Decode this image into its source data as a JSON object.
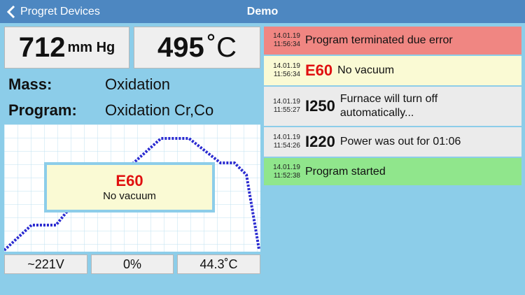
{
  "nav": {
    "back": "Progret Devices",
    "title": "Demo"
  },
  "readings": {
    "pressure": {
      "value": "712",
      "unit": "mm Hg"
    },
    "temperature": {
      "value": "495",
      "unit": "˚C"
    }
  },
  "info": {
    "mass_label": "Mass:",
    "mass": "Oxidation",
    "program_label": "Program:",
    "program": "Oxidation Cr,Co"
  },
  "alert": {
    "code": "E60",
    "message": "No vacuum"
  },
  "status": [
    "~221V",
    "0%",
    "44.3˚C"
  ],
  "log": [
    {
      "date": "14.01.19",
      "time": "11:56:34",
      "message": "Program terminated due error",
      "color": "#f08682"
    },
    {
      "date": "14.01.19",
      "time": "11:56:34",
      "code": "E60",
      "message": "No vacuum",
      "color": "#fafad4",
      "code_color": "#e01010"
    },
    {
      "date": "14.01.19",
      "time": "11:55:27",
      "code": "I250",
      "message": "Furnace will turn off automatically...",
      "color": "#ebebeb",
      "code_color": "#111111"
    },
    {
      "date": "14.01.19",
      "time": "11:54:26",
      "code": "I220",
      "message": "Power was out for 01:06",
      "color": "#ebebeb",
      "code_color": "#111111"
    },
    {
      "date": "14.01.19",
      "time": "11:52:38",
      "message": "Program started",
      "color": "#90e68c"
    }
  ]
}
